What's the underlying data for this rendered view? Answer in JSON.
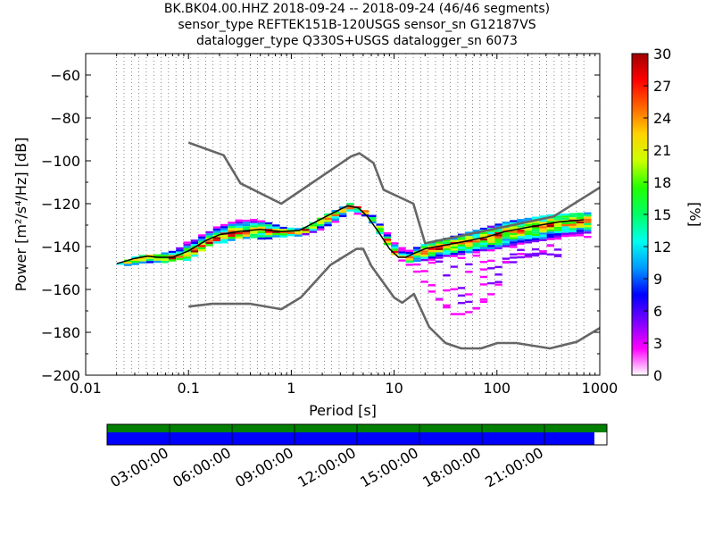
{
  "title_lines": [
    "BK.BK04.00.HHZ   2018-09-24 -- 2018-09-24  (46/46 segments)",
    "sensor_type REFTEK151B-120USGS sensor_sn G12187VS",
    "datalogger_type Q330S+USGS datalogger_sn 6073"
  ],
  "chart_data": {
    "type": "heatmap",
    "xlabel": "Period [s]",
    "ylabel": "Power [m²/s⁴/Hz] [dB]",
    "xscale": "log",
    "xlim": [
      0.01,
      1000
    ],
    "ylim": [
      -200,
      -50
    ],
    "x_ticks": [
      {
        "value": 0.01,
        "label": "0.01"
      },
      {
        "value": 0.1,
        "label": "0.1"
      },
      {
        "value": 1,
        "label": "1"
      },
      {
        "value": 10,
        "label": "10"
      },
      {
        "value": 100,
        "label": "100"
      },
      {
        "value": 1000,
        "label": "1000"
      }
    ],
    "y_ticks": [
      {
        "value": -60,
        "label": "−60"
      },
      {
        "value": -80,
        "label": "−80"
      },
      {
        "value": -100,
        "label": "−100"
      },
      {
        "value": -120,
        "label": "−120"
      },
      {
        "value": -140,
        "label": "−140"
      },
      {
        "value": -160,
        "label": "−160"
      },
      {
        "value": -180,
        "label": "−180"
      },
      {
        "value": -200,
        "label": "−200"
      }
    ],
    "grid": "dotted vertical lines at period bins",
    "noise_models": {
      "color": "#666666",
      "new_high_noise_model": {
        "periods": [
          0.1,
          0.22,
          0.32,
          0.8,
          3.8,
          4.6,
          6.3,
          7.9,
          15.4,
          20,
          354.8,
          1000
        ],
        "values": [
          -91.5,
          -97.4,
          -110.5,
          -120,
          -98,
          -96.5,
          -101,
          -113.5,
          -120,
          -138.5,
          -126,
          -112.5
        ]
      },
      "new_low_noise_model": {
        "periods": [
          0.1,
          0.17,
          0.4,
          0.8,
          1.24,
          2.4,
          4.3,
          5,
          6,
          10,
          12,
          15.6,
          21.9,
          31.6,
          45,
          70,
          101,
          154,
          328,
          600,
          1000
        ],
        "values": [
          -168,
          -166.7,
          -166.7,
          -169.2,
          -163.7,
          -148.6,
          -141.1,
          -141.1,
          -149,
          -163.8,
          -166.2,
          -162.1,
          -177.5,
          -185,
          -187.5,
          -187.5,
          -185,
          -185,
          -187.5,
          -184.4,
          -178
        ]
      }
    },
    "mean_psd": {
      "color": "#000000",
      "periods": [
        0.02,
        0.03,
        0.04,
        0.05,
        0.07,
        0.1,
        0.15,
        0.2,
        0.3,
        0.5,
        0.8,
        1.2,
        1.8,
        2.5,
        3.5,
        4.5,
        5.5,
        7,
        9,
        11,
        13,
        16,
        20,
        30,
        50,
        80,
        120,
        200,
        400,
        700
      ],
      "values": [
        -148,
        -145.5,
        -144.5,
        -145,
        -145,
        -142,
        -137,
        -134.5,
        -133,
        -132,
        -133,
        -132.5,
        -128,
        -124.5,
        -121,
        -122,
        -126,
        -133,
        -141,
        -145,
        -145,
        -143,
        -141,
        -139.5,
        -137.5,
        -135.5,
        -133,
        -131,
        -128.5,
        -127.5
      ]
    },
    "psd_spread_top": {
      "periods": [
        0.02,
        0.03,
        0.05,
        0.1,
        0.15,
        0.3,
        0.5,
        0.8,
        1.2,
        2,
        3.5,
        5.5,
        9,
        13,
        20,
        50,
        120,
        300,
        700
      ],
      "values": [
        -147.5,
        -144,
        -143.5,
        -136.5,
        -130.5,
        -126,
        -128,
        -131,
        -131.5,
        -125,
        -119.5,
        -124.5,
        -136.5,
        -141.5,
        -138,
        -133,
        -128,
        -125,
        -124
      ]
    },
    "psd_spread_bottom": {
      "periods": [
        0.02,
        0.03,
        0.05,
        0.1,
        0.15,
        0.3,
        0.5,
        0.8,
        1.2,
        2,
        3.5,
        5.5,
        9,
        13,
        20,
        50,
        120,
        300,
        700
      ],
      "values": [
        -148.5,
        -147.5,
        -147.5,
        -145.5,
        -139,
        -136,
        -136,
        -135,
        -134.5,
        -131,
        -123,
        -128,
        -143,
        -147,
        -146,
        -143,
        -140,
        -137,
        -135
      ]
    },
    "outlier_psd": {
      "color": "#dd00dd",
      "periods": [
        11,
        13,
        16,
        20,
        25,
        30,
        35,
        45,
        60,
        80,
        100
      ],
      "values": [
        -146,
        -148,
        -152,
        -159,
        -164,
        -168,
        -171,
        -171,
        -168,
        -162,
        -156
      ]
    },
    "colorbar": {
      "label": "[%]",
      "min": 0,
      "max": 30,
      "ticks": [
        0,
        3,
        6,
        9,
        12,
        15,
        18,
        21,
        24,
        27,
        30
      ],
      "colors": [
        "#ffffff",
        "#ff00ff",
        "#7a00ff",
        "#0000ff",
        "#0099ff",
        "#00ffee",
        "#00ff66",
        "#22ff00",
        "#ccff00",
        "#ffd400",
        "#ff6600",
        "#ff0000",
        "#a00000"
      ]
    }
  },
  "coverage": {
    "data_color": "#0000ff",
    "data_end_fraction": 0.975,
    "header_color": "#008000",
    "time_labels": [
      "03:00:00",
      "06:00:00",
      "09:00:00",
      "12:00:00",
      "15:00:00",
      "18:00:00",
      "21:00:00"
    ]
  }
}
